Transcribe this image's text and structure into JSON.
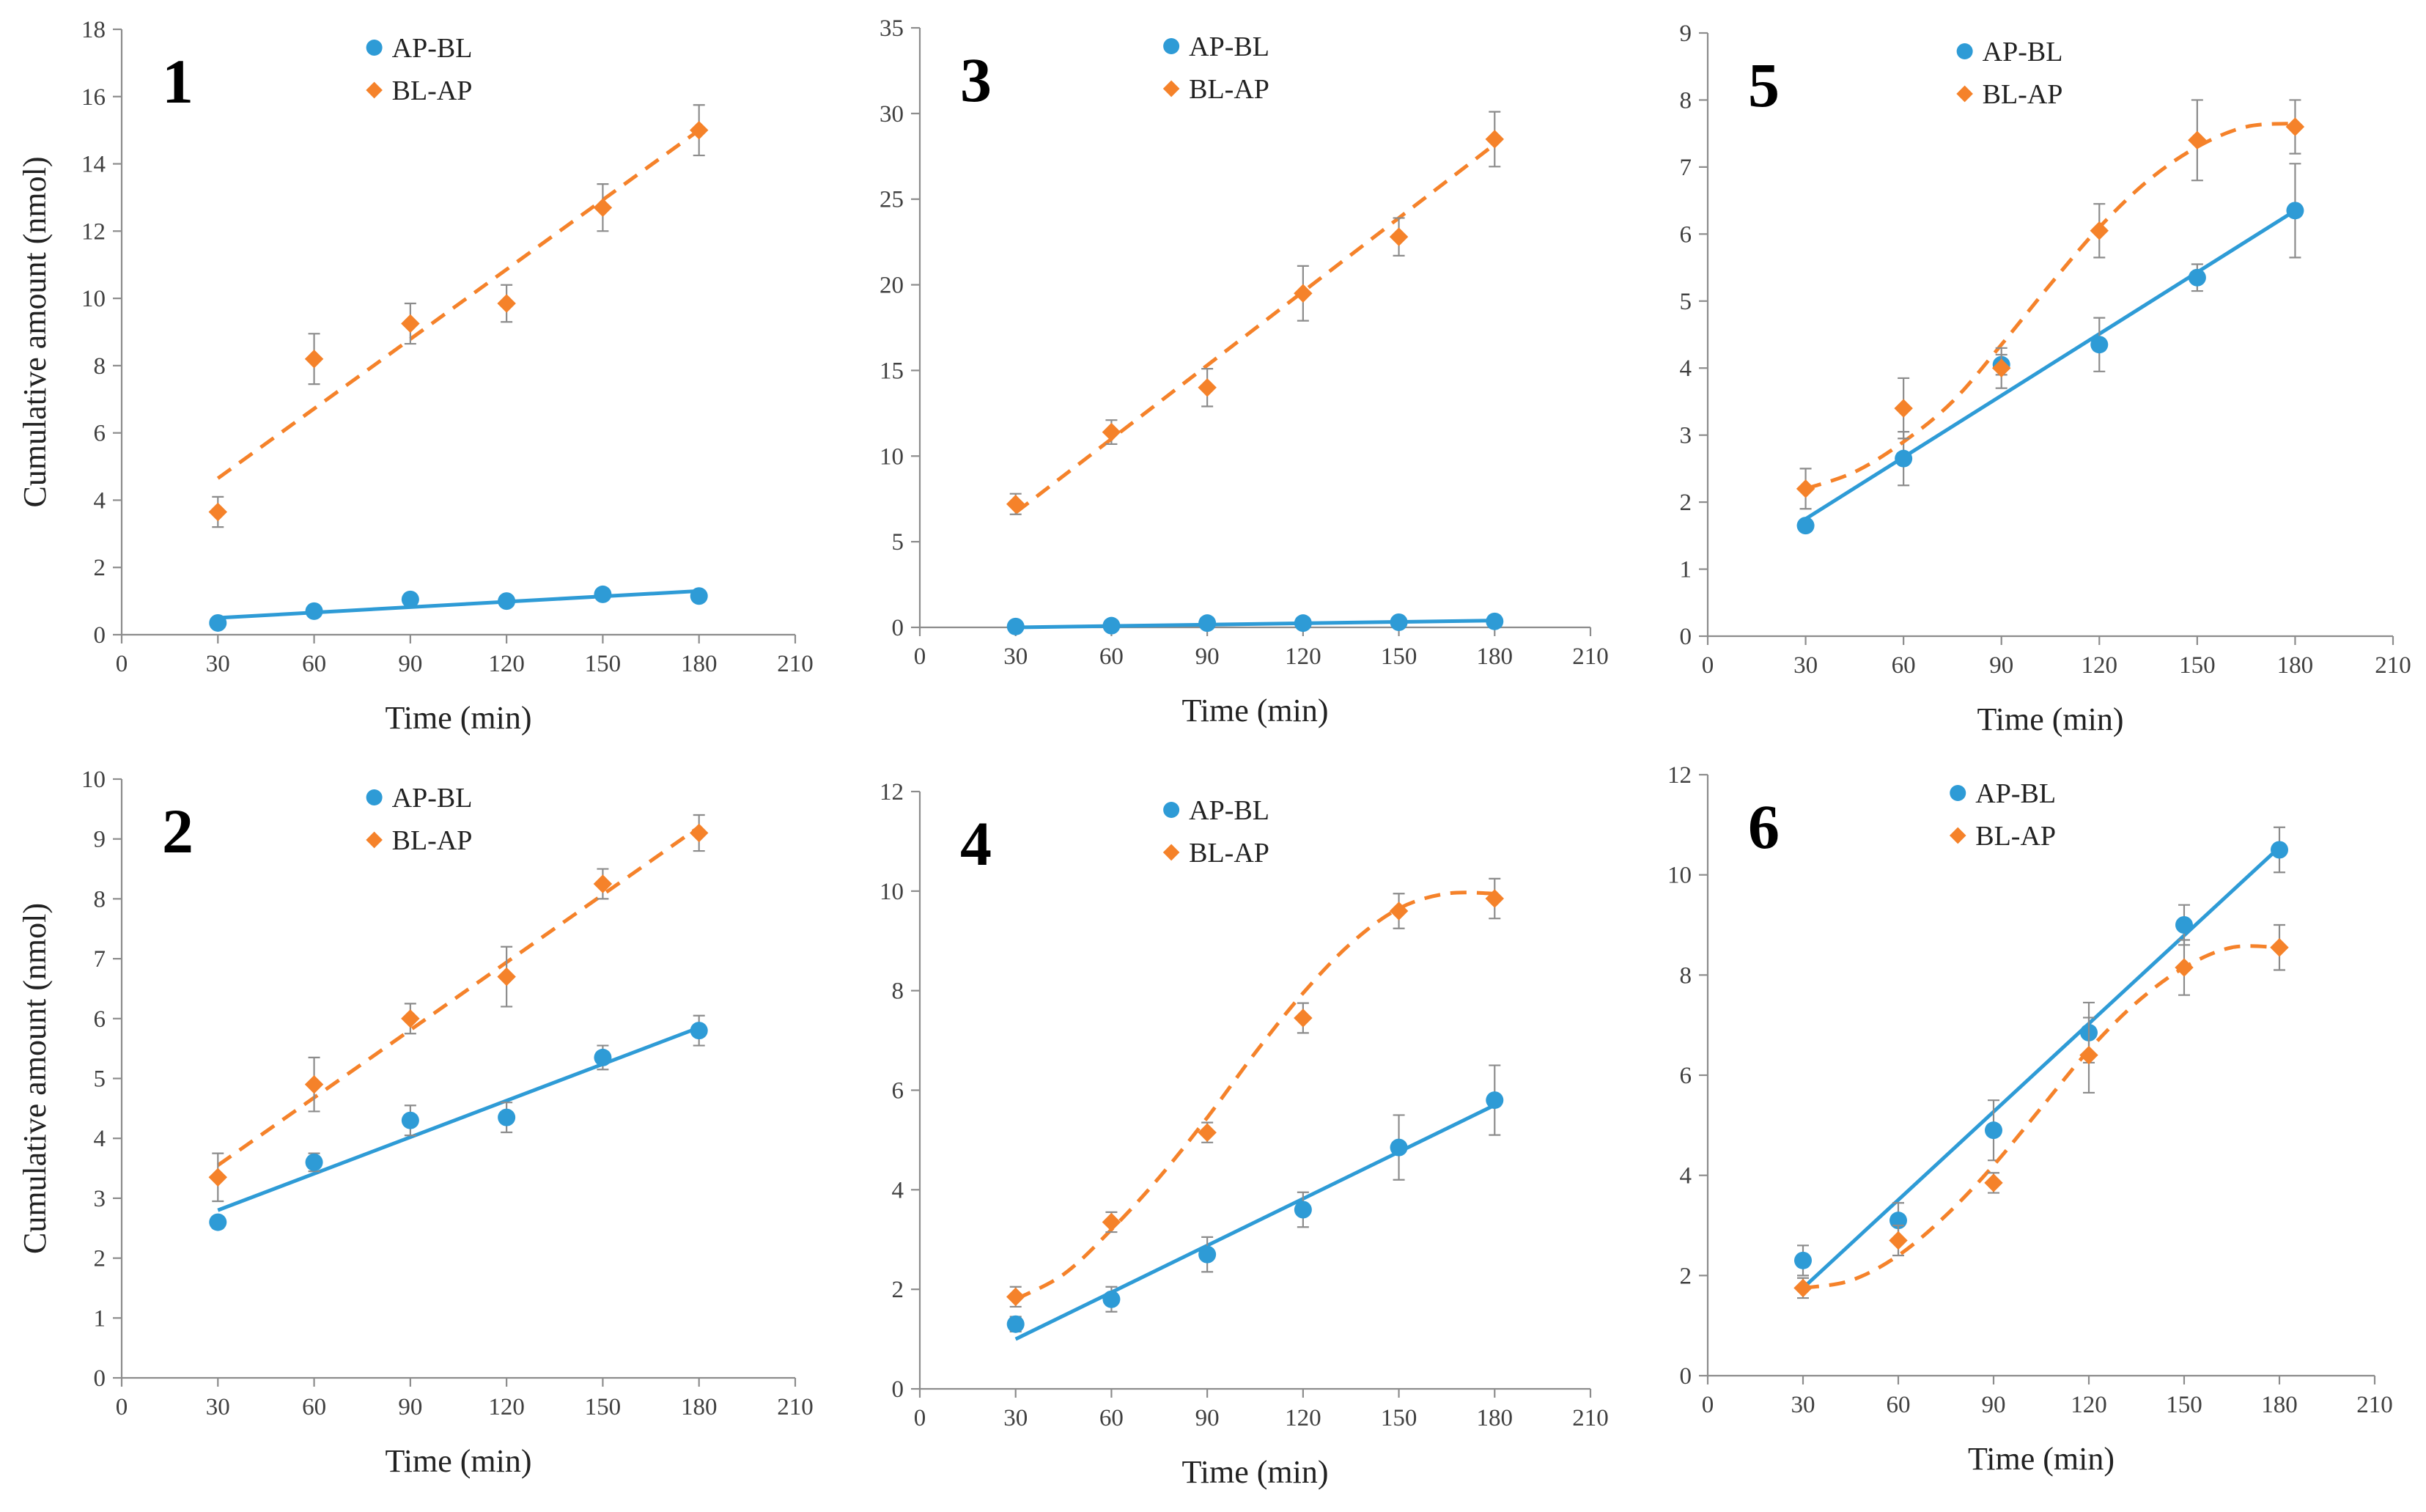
{
  "colors": {
    "blue": "#2e9bd6",
    "orange": "#f5822a",
    "axis": "#8c8c8c"
  },
  "chart_data": [
    {
      "panel": "1",
      "type": "scatter",
      "xlabel": "Time (min)",
      "ylabel": "Cumulative amount (nmol)",
      "xlim": [
        0,
        210
      ],
      "xticks": [
        0,
        30,
        60,
        90,
        120,
        150,
        180,
        210
      ],
      "ylim": [
        0,
        18
      ],
      "yticks": [
        0,
        2,
        4,
        6,
        8,
        10,
        12,
        14,
        16,
        18
      ],
      "legend_position": "top-center",
      "x": [
        30,
        60,
        90,
        120,
        150,
        180
      ],
      "series": [
        {
          "name": "AP-BL",
          "values": [
            0.35,
            0.7,
            1.05,
            1.0,
            1.2,
            1.15
          ],
          "errors": [
            0,
            0,
            0,
            0,
            0,
            0
          ],
          "fit": "linear",
          "fit_line": [
            [
              30,
              0.5
            ],
            [
              180,
              1.3
            ]
          ]
        },
        {
          "name": "BL-AP",
          "values": [
            3.65,
            8.2,
            9.25,
            9.85,
            12.7,
            15.0
          ],
          "errors": [
            0.45,
            0.75,
            0.6,
            0.55,
            0.7,
            0.75
          ],
          "fit": "linear",
          "fit_line": [
            [
              30,
              4.65
            ],
            [
              180,
              15.0
            ]
          ]
        }
      ]
    },
    {
      "panel": "3",
      "type": "scatter",
      "xlabel": "Time (min)",
      "ylabel": "",
      "xlim": [
        0,
        210
      ],
      "xticks": [
        0,
        30,
        60,
        90,
        120,
        150,
        180,
        210
      ],
      "ylim": [
        0,
        35
      ],
      "yticks": [
        0,
        5,
        10,
        15,
        20,
        25,
        30,
        35
      ],
      "legend_position": "top-center",
      "x": [
        30,
        60,
        90,
        120,
        150,
        180
      ],
      "series": [
        {
          "name": "AP-BL",
          "values": [
            0.05,
            0.1,
            0.25,
            0.25,
            0.3,
            0.35
          ],
          "errors": [
            0,
            0,
            0,
            0,
            0,
            0
          ],
          "fit": "linear",
          "fit_line": [
            [
              30,
              0.0
            ],
            [
              180,
              0.4
            ]
          ]
        },
        {
          "name": "BL-AP",
          "values": [
            7.2,
            11.4,
            14.0,
            19.5,
            22.8,
            28.5
          ],
          "errors": [
            0.6,
            0.7,
            1.1,
            1.6,
            1.1,
            1.6
          ],
          "fit": "linear",
          "fit_line": [
            [
              30,
              6.7
            ],
            [
              180,
              28.2
            ]
          ]
        }
      ]
    },
    {
      "panel": "5",
      "type": "scatter",
      "xlabel": "Time (min)",
      "ylabel": "",
      "xlim": [
        0,
        210
      ],
      "xticks": [
        0,
        30,
        60,
        90,
        120,
        150,
        180,
        210
      ],
      "ylim": [
        0,
        9
      ],
      "yticks": [
        0,
        1,
        2,
        3,
        4,
        5,
        6,
        7,
        8,
        9
      ],
      "legend_position": "top-center",
      "x": [
        30,
        60,
        90,
        120,
        150,
        180
      ],
      "series": [
        {
          "name": "AP-BL",
          "values": [
            1.65,
            2.65,
            4.05,
            4.35,
            5.35,
            6.35
          ],
          "errors": [
            0,
            0.4,
            0.15,
            0.4,
            0.2,
            0.7
          ],
          "fit": "linear",
          "fit_line": [
            [
              30,
              1.75
            ],
            [
              180,
              6.35
            ]
          ]
        },
        {
          "name": "BL-AP",
          "values": [
            2.2,
            3.4,
            4.0,
            6.05,
            7.4,
            7.6
          ],
          "errors": [
            0.3,
            0.45,
            0.3,
            0.4,
            0.6,
            0.4
          ],
          "fit": "polynomial",
          "fit_line": [
            [
              30,
              2.2
            ],
            [
              45,
              2.45
            ],
            [
              60,
              2.9
            ],
            [
              75,
              3.5
            ],
            [
              90,
              4.35
            ],
            [
              105,
              5.25
            ],
            [
              120,
              6.1
            ],
            [
              135,
              6.8
            ],
            [
              150,
              7.3
            ],
            [
              165,
              7.6
            ],
            [
              180,
              7.65
            ]
          ]
        }
      ]
    },
    {
      "panel": "2",
      "type": "scatter",
      "xlabel": "Time (min)",
      "ylabel": "Cumulative amount (nmol)",
      "xlim": [
        0,
        210
      ],
      "xticks": [
        0,
        30,
        60,
        90,
        120,
        150,
        180,
        210
      ],
      "ylim": [
        0,
        10
      ],
      "yticks": [
        0,
        1,
        2,
        3,
        4,
        5,
        6,
        7,
        8,
        9,
        10
      ],
      "legend_position": "top-center",
      "x": [
        30,
        60,
        90,
        120,
        150,
        180
      ],
      "series": [
        {
          "name": "AP-BL",
          "values": [
            2.6,
            3.6,
            4.3,
            4.35,
            5.35,
            5.8
          ],
          "errors": [
            0,
            0.15,
            0.25,
            0.25,
            0.2,
            0.25
          ],
          "fit": "linear",
          "fit_line": [
            [
              30,
              2.8
            ],
            [
              180,
              5.85
            ]
          ]
        },
        {
          "name": "BL-AP",
          "values": [
            3.35,
            4.9,
            6.0,
            6.7,
            8.25,
            9.1
          ],
          "errors": [
            0.4,
            0.45,
            0.25,
            0.5,
            0.25,
            0.3
          ],
          "fit": "linear",
          "fit_line": [
            [
              30,
              3.55
            ],
            [
              180,
              9.2
            ]
          ]
        }
      ]
    },
    {
      "panel": "4",
      "type": "scatter",
      "xlabel": "Time (min)",
      "ylabel": "",
      "xlim": [
        0,
        210
      ],
      "xticks": [
        0,
        30,
        60,
        90,
        120,
        150,
        180,
        210
      ],
      "ylim": [
        0,
        12
      ],
      "yticks": [
        0,
        2,
        4,
        6,
        8,
        10,
        12
      ],
      "legend_position": "top-center",
      "x": [
        30,
        60,
        90,
        120,
        150,
        180
      ],
      "series": [
        {
          "name": "AP-BL",
          "values": [
            1.3,
            1.8,
            2.7,
            3.6,
            4.85,
            5.8
          ],
          "errors": [
            0.15,
            0.25,
            0.35,
            0.35,
            0.65,
            0.7
          ],
          "fit": "linear",
          "fit_line": [
            [
              30,
              1.0
            ],
            [
              180,
              5.7
            ]
          ]
        },
        {
          "name": "BL-AP",
          "values": [
            1.85,
            3.35,
            5.15,
            7.45,
            9.6,
            9.85
          ],
          "errors": [
            0.2,
            0.2,
            0.2,
            0.3,
            0.35,
            0.4
          ],
          "fit": "polynomial",
          "fit_line": [
            [
              30,
              1.8
            ],
            [
              45,
              2.3
            ],
            [
              60,
              3.2
            ],
            [
              75,
              4.25
            ],
            [
              90,
              5.45
            ],
            [
              105,
              6.75
            ],
            [
              120,
              7.95
            ],
            [
              135,
              8.95
            ],
            [
              150,
              9.65
            ],
            [
              165,
              9.95
            ],
            [
              180,
              9.95
            ]
          ]
        }
      ]
    },
    {
      "panel": "6",
      "type": "scatter",
      "xlabel": "Time (min)",
      "ylabel": "",
      "xlim": [
        0,
        210
      ],
      "xticks": [
        0,
        30,
        60,
        90,
        120,
        150,
        180,
        210
      ],
      "ylim": [
        0,
        12
      ],
      "yticks": [
        0,
        2,
        4,
        6,
        8,
        10,
        12
      ],
      "legend_position": "top-center",
      "x": [
        30,
        60,
        90,
        120,
        150,
        180
      ],
      "series": [
        {
          "name": "AP-BL",
          "values": [
            2.3,
            3.1,
            4.9,
            6.85,
            9.0,
            10.5
          ],
          "errors": [
            0.3,
            0.35,
            0.6,
            0.6,
            0.4,
            0.45
          ],
          "fit": "linear",
          "fit_line": [
            [
              30,
              1.75
            ],
            [
              180,
              10.55
            ]
          ]
        },
        {
          "name": "BL-AP",
          "values": [
            1.75,
            2.7,
            3.85,
            6.4,
            8.15,
            8.55
          ],
          "errors": [
            0.2,
            0.3,
            0.2,
            0.75,
            0.55,
            0.45
          ],
          "fit": "polynomial",
          "fit_line": [
            [
              30,
              1.75
            ],
            [
              45,
              1.9
            ],
            [
              60,
              2.4
            ],
            [
              75,
              3.2
            ],
            [
              90,
              4.2
            ],
            [
              105,
              5.35
            ],
            [
              120,
              6.5
            ],
            [
              135,
              7.45
            ],
            [
              150,
              8.15
            ],
            [
              165,
              8.55
            ],
            [
              180,
              8.55
            ]
          ]
        }
      ]
    }
  ]
}
